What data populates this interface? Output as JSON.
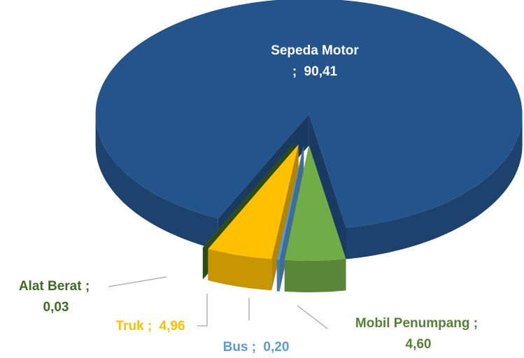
{
  "chart_data": {
    "type": "pie3d",
    "categories": [
      "Sepeda Motor",
      "Mobil Penumpang",
      "Bus",
      "Truk",
      "Alat Berat"
    ],
    "values": [
      90.41,
      4.6,
      0.2,
      4.96,
      0.03
    ],
    "value_labels": [
      "90,41",
      "4,60",
      "0,20",
      "4,96",
      "0,03"
    ],
    "label_separator": ";",
    "colors": [
      "#24548c",
      "#70ad47",
      "#5b9bd5",
      "#ffc000",
      "#3d6b22"
    ],
    "label_colors": [
      "#ffffff",
      "#548235",
      "#5b9bd5",
      "#ffc000",
      "#3d6b22"
    ]
  }
}
